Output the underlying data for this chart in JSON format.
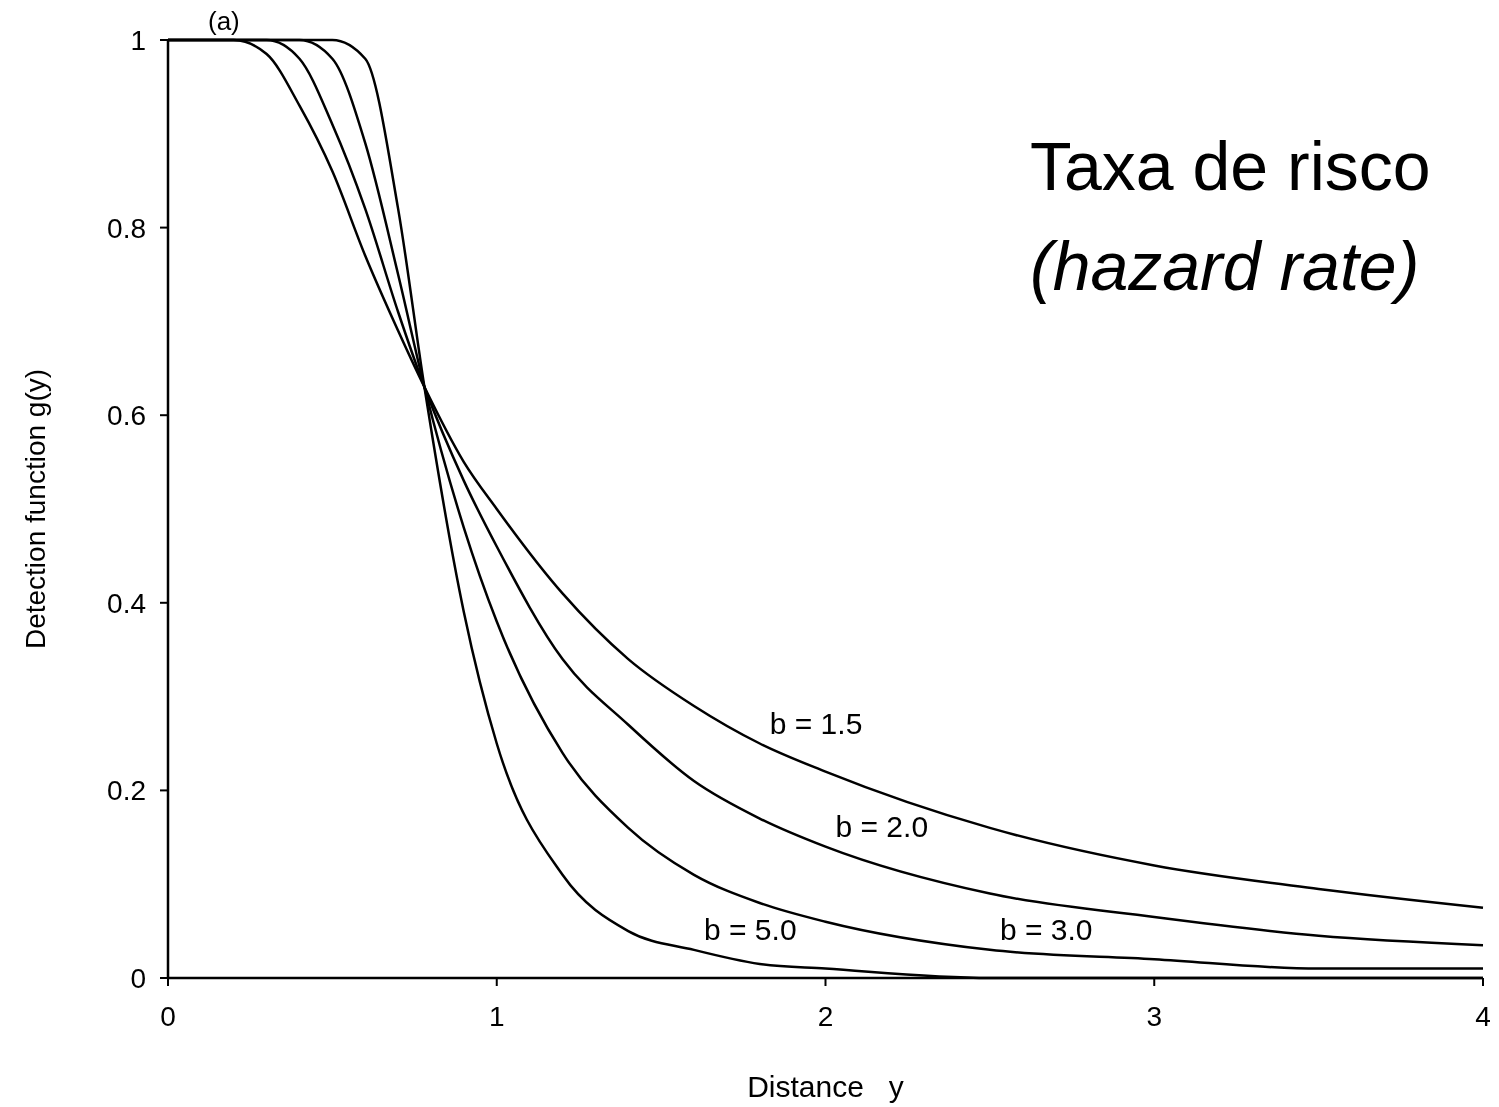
{
  "chart_data": {
    "type": "line",
    "title": "Taxa de risco",
    "subtitle": "(hazard rate)",
    "xlabel": "Distance   y",
    "ylabel": "Detection function g(y)",
    "annotations": [
      "(a)"
    ],
    "x": [
      0,
      0.2,
      0.3,
      0.4,
      0.5,
      0.6,
      0.7,
      0.78,
      0.9,
      1,
      1.2,
      1.4,
      1.6,
      1.8,
      2,
      2.5,
      3,
      3.5,
      4
    ],
    "series": [
      {
        "name": "b = 1.5",
        "color": "#000000",
        "values": [
          1,
          1,
          0.985,
          0.93,
          0.86,
          0.77,
          0.69,
          0.63,
          0.55,
          0.5,
          0.41,
          0.34,
          0.29,
          0.25,
          0.22,
          0.16,
          0.12,
          0.095,
          0.075
        ]
      },
      {
        "name": "b = 2.0",
        "color": "#000000",
        "values": [
          1,
          1,
          1,
          0.98,
          0.91,
          0.82,
          0.71,
          0.63,
          0.53,
          0.46,
          0.34,
          0.27,
          0.21,
          0.17,
          0.14,
          0.09,
          0.065,
          0.045,
          0.035
        ]
      },
      {
        "name": "b = 3.0",
        "color": "#000000",
        "values": [
          1,
          1,
          1,
          1,
          0.98,
          0.89,
          0.75,
          0.63,
          0.48,
          0.38,
          0.24,
          0.16,
          0.11,
          0.08,
          0.06,
          0.03,
          0.02,
          0.01,
          0.01
        ]
      },
      {
        "name": "b = 5.0",
        "color": "#000000",
        "values": [
          1,
          1,
          1,
          1,
          1,
          0.98,
          0.82,
          0.63,
          0.39,
          0.25,
          0.11,
          0.05,
          0.03,
          0.015,
          0.01,
          0,
          0,
          0,
          0
        ]
      }
    ],
    "xlim": [
      0,
      4
    ],
    "xticks": [
      0,
      1,
      2,
      3,
      4
    ],
    "ylim": [
      0,
      1
    ],
    "yticks": [
      0,
      0.2,
      0.4,
      0.6,
      0.8,
      1
    ],
    "grid": false,
    "marker": "none",
    "line_style": "solid"
  }
}
